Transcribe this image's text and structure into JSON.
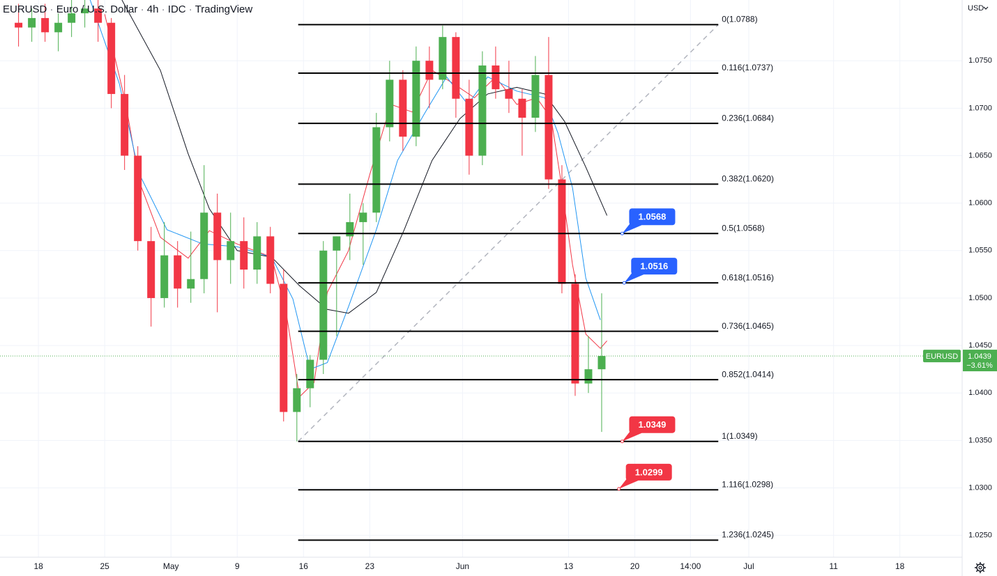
{
  "chart_data": {
    "type": "candlestick",
    "header": {
      "symbol": "EURUSD",
      "title": "Euro / U.S. Dollar",
      "interval": "4h",
      "source": "IDC",
      "platform": "TradingView",
      "currency": "USD"
    },
    "xlim": [
      -2.9,
      69.7
    ],
    "ylim": [
      1.0227,
      1.0814
    ],
    "xticks": [
      {
        "value": 0,
        "label": "18"
      },
      {
        "value": 5,
        "label": "25"
      },
      {
        "value": 10,
        "label": "May"
      },
      {
        "value": 15,
        "label": "9"
      },
      {
        "value": 20,
        "label": "16"
      },
      {
        "value": 25,
        "label": "23"
      },
      {
        "value": 32,
        "label": "Jun"
      },
      {
        "value": 40,
        "label": "13"
      },
      {
        "value": 45,
        "label": "20"
      },
      {
        "value": 49.2,
        "label": "14:00"
      },
      {
        "value": 53.6,
        "label": "Jul"
      },
      {
        "value": 60,
        "label": "11"
      },
      {
        "value": 65,
        "label": "18"
      }
    ],
    "yticks": [
      {
        "value": 1.025,
        "label": "1.0250"
      },
      {
        "value": 1.03,
        "label": "1.0300"
      },
      {
        "value": 1.035,
        "label": "1.0350"
      },
      {
        "value": 1.04,
        "label": "1.0400"
      },
      {
        "value": 1.045,
        "label": "1.0450"
      },
      {
        "value": 1.05,
        "label": "1.0500"
      },
      {
        "value": 1.055,
        "label": "1.0550"
      },
      {
        "value": 1.06,
        "label": "1.0600"
      },
      {
        "value": 1.065,
        "label": "1.0650"
      },
      {
        "value": 1.07,
        "label": "1.0700"
      },
      {
        "value": 1.075,
        "label": "1.0750"
      }
    ],
    "grid": true,
    "up_color": "#4caf50",
    "down_color": "#f23645",
    "candles": {
      "x": [
        -1.5,
        -0.5,
        0.5,
        1.5,
        2.5,
        3.5,
        4.5,
        5.5,
        6.5,
        7.5,
        8.5,
        9.5,
        10.5,
        11.5,
        12.5,
        13.5,
        14.5,
        15.5,
        16.5,
        17.5,
        18.5,
        19.5,
        20.5,
        21.5,
        22.5,
        23.5,
        24.5,
        25.5,
        26.5,
        27.5,
        28.5,
        29.5,
        30.5,
        31.5,
        32.5,
        33.5,
        34.5,
        35.5,
        36.5,
        37.5,
        38.5,
        39.5,
        40.5,
        41.5,
        42.5
      ],
      "open": [
        1.079,
        1.0785,
        1.0795,
        1.078,
        1.079,
        1.08,
        1.0805,
        1.079,
        1.0715,
        1.065,
        1.056,
        1.05,
        1.0545,
        1.051,
        1.052,
        1.059,
        1.054,
        1.056,
        1.053,
        1.0565,
        1.0515,
        1.038,
        1.0405,
        1.0435,
        1.055,
        1.0565,
        1.058,
        1.059,
        1.068,
        1.073,
        1.067,
        1.075,
        1.073,
        1.0775,
        1.071,
        1.065,
        1.0745,
        1.072,
        1.071,
        1.069,
        1.0735,
        1.0625,
        1.0515,
        1.041,
        1.0425
      ],
      "high": [
        1.081,
        1.0805,
        1.081,
        1.08,
        1.0815,
        1.0815,
        1.0815,
        1.0795,
        1.0735,
        1.066,
        1.0575,
        1.058,
        1.056,
        1.057,
        1.064,
        1.061,
        1.059,
        1.0585,
        1.058,
        1.0575,
        1.053,
        1.042,
        1.044,
        1.056,
        1.0565,
        1.061,
        1.06,
        1.0695,
        1.075,
        1.074,
        1.0765,
        1.0765,
        1.0787,
        1.078,
        1.073,
        1.076,
        1.0765,
        1.075,
        1.072,
        1.0755,
        1.0775,
        1.064,
        1.0525,
        1.046,
        1.0505
      ],
      "low": [
        1.0765,
        1.077,
        1.077,
        1.076,
        1.0775,
        1.0785,
        1.077,
        1.07,
        1.0635,
        1.055,
        1.047,
        1.049,
        1.049,
        1.0495,
        1.0505,
        1.0485,
        1.0515,
        1.051,
        1.0515,
        1.0505,
        1.037,
        1.0349,
        1.0385,
        1.042,
        1.046,
        1.054,
        1.0535,
        1.058,
        1.0665,
        1.0655,
        1.066,
        1.07,
        1.072,
        1.069,
        1.063,
        1.064,
        1.071,
        1.0695,
        1.065,
        1.0675,
        1.0615,
        1.0505,
        1.0397,
        1.04,
        1.0359
      ],
      "close": [
        1.0785,
        1.0795,
        1.078,
        1.079,
        1.08,
        1.0805,
        1.079,
        1.0715,
        1.065,
        1.056,
        1.05,
        1.0545,
        1.051,
        1.052,
        1.059,
        1.054,
        1.056,
        1.053,
        1.0565,
        1.0515,
        1.038,
        1.0405,
        1.0435,
        1.055,
        1.0565,
        1.058,
        1.059,
        1.068,
        1.073,
        1.067,
        1.075,
        1.073,
        1.0775,
        1.071,
        1.065,
        1.0745,
        1.072,
        1.071,
        1.069,
        1.0735,
        1.0625,
        1.0515,
        1.041,
        1.0425,
        1.0439
      ]
    },
    "moving_averages": [
      {
        "color": "#f23645",
        "x": [
          5,
          6.6,
          7.6,
          9.2,
          11.3,
          12.9,
          15,
          17.6,
          18.7,
          19.7,
          20.8,
          21.8,
          23.4,
          25,
          26.6,
          28.2,
          29.7,
          31.3,
          32.9,
          34.5,
          36.1,
          37.6,
          38.7,
          39.5,
          40.3,
          41.3,
          42.4,
          42.9
        ],
        "values": [
          1.0799,
          1.0704,
          1.0623,
          1.0564,
          1.0542,
          1.0571,
          1.0557,
          1.0543,
          1.0484,
          1.0396,
          1.0411,
          1.0506,
          1.055,
          1.063,
          1.0704,
          1.0696,
          1.074,
          1.0726,
          1.0711,
          1.0733,
          1.0704,
          1.0711,
          1.0689,
          1.0616,
          1.0535,
          1.0462,
          1.0447,
          1.0455
        ]
      },
      {
        "color": "#2196f3",
        "x": [
          3.9,
          6.1,
          7.6,
          9.7,
          12.4,
          15,
          17.6,
          19.2,
          20.5,
          21.8,
          23.4,
          25.5,
          27.1,
          29.2,
          30.8,
          32.4,
          33.9,
          36.1,
          38.2,
          39.2,
          40.3,
          41.3,
          42.4
        ],
        "values": [
          1.0814,
          1.0726,
          1.0631,
          1.0572,
          1.0557,
          1.0554,
          1.0543,
          1.0499,
          1.0425,
          1.0432,
          1.0491,
          1.0572,
          1.0645,
          1.0696,
          1.0733,
          1.0704,
          1.0733,
          1.0718,
          1.0711,
          1.0674,
          1.0616,
          1.0521,
          1.0477
        ]
      },
      {
        "color": "#131722",
        "x": [
          6.3,
          9.2,
          11.3,
          12.9,
          15,
          17.6,
          19.7,
          21.8,
          23.4,
          25.5,
          27.6,
          29.7,
          31.8,
          33.9,
          36.1,
          38.2,
          39.7,
          41.3,
          42.9
        ],
        "values": [
          1.0814,
          1.074,
          1.0652,
          1.0594,
          1.055,
          1.0543,
          1.0513,
          1.0488,
          1.0484,
          1.0506,
          1.0572,
          1.0645,
          1.0689,
          1.0715,
          1.0722,
          1.0715,
          1.0686,
          1.0638,
          1.0587
        ]
      }
    ],
    "fib": {
      "x": [
        19.6,
        51.3
      ],
      "levels": [
        {
          "label": "0(1.0788)",
          "value": 1.0788
        },
        {
          "label": "0.116(1.0737)",
          "value": 1.0737
        },
        {
          "label": "0.236(1.0684)",
          "value": 1.0684
        },
        {
          "label": "0.382(1.0620)",
          "value": 1.062
        },
        {
          "label": "0.5(1.0568)",
          "value": 1.0568
        },
        {
          "label": "0.618(1.0516)",
          "value": 1.0516
        },
        {
          "label": "0.736(1.0465)",
          "value": 1.0465
        },
        {
          "label": "0.852(1.0414)",
          "value": 1.0414
        },
        {
          "label": "1(1.0349)",
          "value": 1.0349
        },
        {
          "label": "1.116(1.0298)",
          "value": 1.0298
        },
        {
          "label": "1.236(1.0245)",
          "value": 1.0245
        }
      ]
    },
    "callouts": [
      {
        "value": 1.0568,
        "x": 44.05,
        "color": "#2962ff"
      },
      {
        "value": 1.0516,
        "x": 44.2,
        "color": "#2962ff"
      },
      {
        "value": 1.0349,
        "x": 44.05,
        "color": "#f23645"
      },
      {
        "value": 1.0299,
        "x": 43.8,
        "color": "#f23645"
      }
    ],
    "last": {
      "symbol": "EURUSD",
      "value": 1.0439,
      "change": {
        "value": -3.61,
        "label": "−3.61%"
      },
      "color": "#4caf50"
    }
  }
}
